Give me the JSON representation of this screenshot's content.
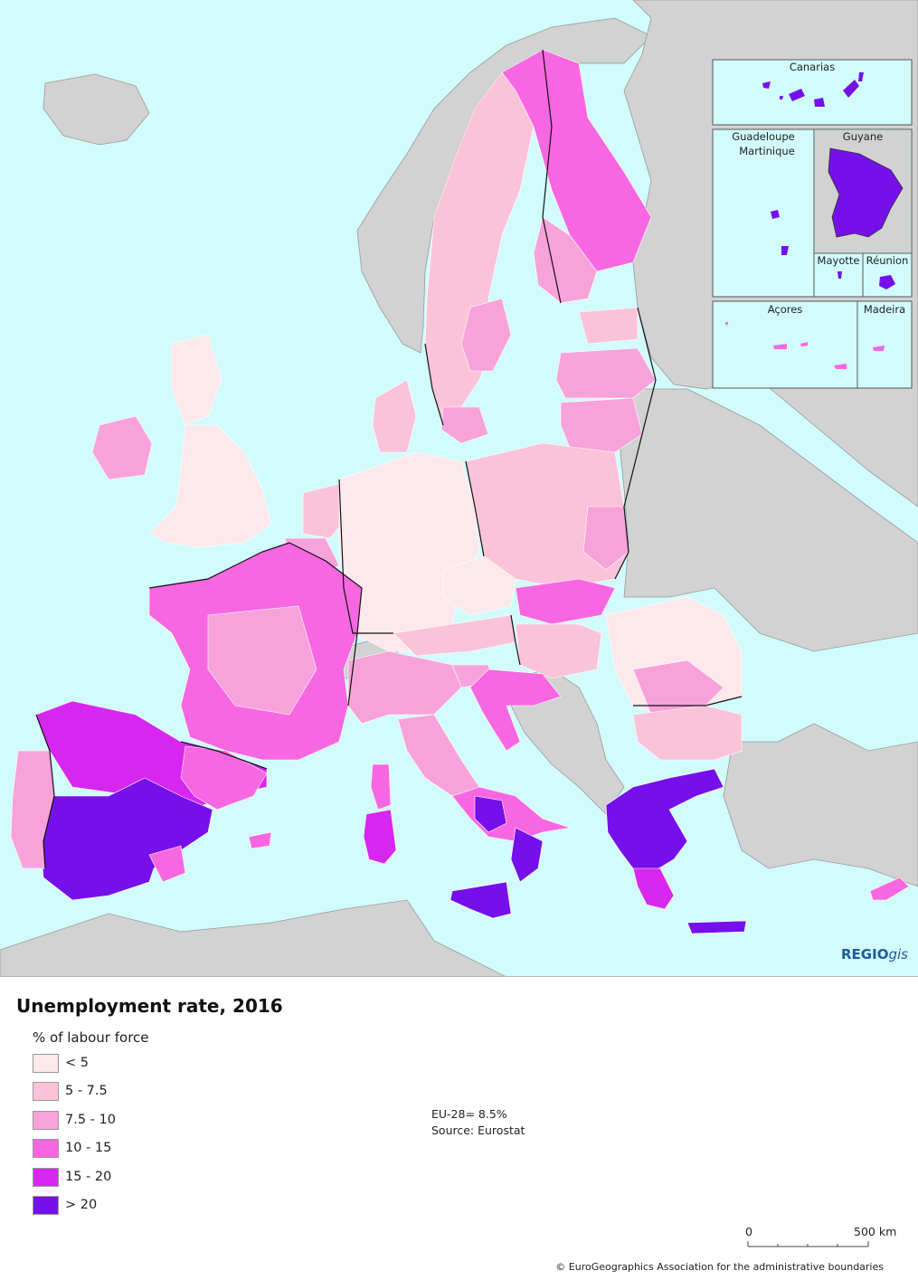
{
  "map": {
    "colors": {
      "sea": "#d2fbfc",
      "non_eu_land": "#d2d2d2",
      "lt5": "#fde8ec",
      "5_7_5": "#fbc3d8",
      "7_5_10": "#f8a2db",
      "10_15": "#f767e1",
      "15_20": "#d726ef",
      "gt20": "#7510ea"
    },
    "insets": {
      "canarias": "Canarias",
      "guadeloupe": "Guadeloupe",
      "martinique": "Martinique",
      "guyane": "Guyane",
      "mayotte": "Mayotte",
      "reunion": "Réunion",
      "acores": "Açores",
      "madeira": "Madeira"
    },
    "logo": {
      "bold": "REGIO",
      "italic": "gis"
    }
  },
  "legend": {
    "title": "Unemployment rate, 2016",
    "subtitle": "% of labour force",
    "classes": [
      {
        "label": "< 5",
        "color": "#fde8ec"
      },
      {
        "label": "5 - 7.5",
        "color": "#fbc3d8"
      },
      {
        "label": "7.5 - 10",
        "color": "#f8a2db"
      },
      {
        "label": "10 - 15",
        "color": "#f767e1"
      },
      {
        "label": "15 - 20",
        "color": "#d726ef"
      },
      {
        "label": "> 20",
        "color": "#7510ea"
      }
    ]
  },
  "notes": {
    "eu_average": "EU-28= 8.5%",
    "source": "Source: Eurostat"
  },
  "scale": {
    "start": "0",
    "end": "500 km"
  },
  "copyright": "© EuroGeographics Association for the administrative boundaries"
}
